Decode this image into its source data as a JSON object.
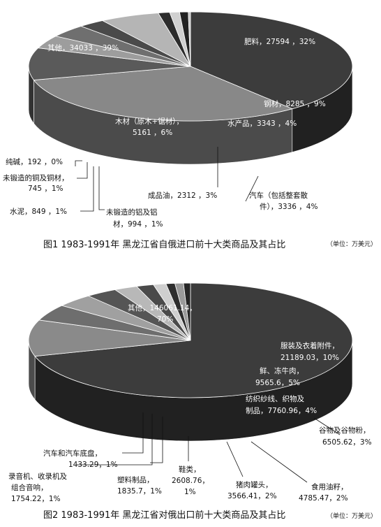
{
  "chart_data": [
    {
      "type": "pie",
      "title": "图1  1983-1991年 黑龙江省自俄进口前十大类商品及其占比",
      "unit": "（单位：万美元）",
      "slices": [
        {
          "label": "其他，34033 ，39%",
          "value": 34033,
          "percent": 39,
          "color": "#3c3c3c"
        },
        {
          "label": "肥料，27594 ，32%",
          "value": 27594,
          "percent": 32,
          "color": "#888888"
        },
        {
          "label": "钢材，8285 ，9%",
          "value": 8285,
          "percent": 9,
          "color": "#5a5a5a"
        },
        {
          "label": "水产品，3343 ，4%",
          "value": 3343,
          "percent": 4,
          "color": "#9d9d9d"
        },
        {
          "label": "汽车（包括整套散件），3336 ，4%",
          "value": 3336,
          "percent": 4,
          "color": "#6f6f6f"
        },
        {
          "label": "成品油，2312 ，3%",
          "value": 2312,
          "percent": 3,
          "color": "#4a4a4a"
        },
        {
          "label": "木材（原木+锯材），5161 ，6%",
          "value": 5161,
          "percent": 6,
          "color": "#b5b5b5"
        },
        {
          "label": "未锻造的铝及铝材，994 ，1%",
          "value": 994,
          "percent": 1,
          "color": "#2c2c2c"
        },
        {
          "label": "水泥，849 ，1%",
          "value": 849,
          "percent": 1,
          "color": "#d0d0d0"
        },
        {
          "label": "未锻造的铜及铜材，745 ，1%",
          "value": 745,
          "percent": 1,
          "color": "#222222"
        },
        {
          "label": "纯碱，192 ，0%",
          "value": 192,
          "percent": 0,
          "color": "#c6c6c6"
        }
      ]
    },
    {
      "type": "pie",
      "title": "图2  1983-1991年 黑龙江省对俄出口前十大类商品及其占比",
      "unit": "（单位：万美元）",
      "slices": [
        {
          "label": "其他，146061.14，70%",
          "value": 146061.14,
          "percent": 70,
          "color": "#3c3c3c"
        },
        {
          "label": "服装及衣着附件，21189.03，10%",
          "value": 21189.03,
          "percent": 10,
          "color": "#8a8a8a"
        },
        {
          "label": "鲜、冻牛肉，9565.6，5%",
          "value": 9565.6,
          "percent": 5,
          "color": "#6e6e6e"
        },
        {
          "label": "纺织纱线、织物及制品，7760.96，4%",
          "value": 7760.96,
          "percent": 4,
          "color": "#a0a0a0"
        },
        {
          "label": "谷物及谷物粉，6505.62，3%",
          "value": 6505.62,
          "percent": 3,
          "color": "#555555"
        },
        {
          "label": "食用油籽，4785.47，2%",
          "value": 4785.47,
          "percent": 2,
          "color": "#b8b8b8"
        },
        {
          "label": "猪肉罐头，3566.41，2%",
          "value": 3566.41,
          "percent": 2,
          "color": "#4a4a4a"
        },
        {
          "label": "鞋类，2608.76，1%",
          "value": 2608.76,
          "percent": 1,
          "color": "#cfcfcf"
        },
        {
          "label": "塑料制品，1835.7，1%",
          "value": 1835.7,
          "percent": 1,
          "color": "#2e2e2e"
        },
        {
          "label": "录音机、收录机及组合音响，1754.22，1%",
          "value": 1754.22,
          "percent": 1,
          "color": "#9a9a9a"
        },
        {
          "label": "汽车和汽车底盘，1433.29，1%",
          "value": 1433.29,
          "percent": 1,
          "color": "#262626"
        }
      ]
    }
  ],
  "labels1": {
    "other_a": "其他，34033 ，39%",
    "fert": "肥料，27594 ，32%",
    "steel": "钢材，8285 ，9%",
    "aquatic": "水产品，3343 ，4%",
    "car_a": "汽车（包括整套散",
    "car_b": "件），3336 ，4%",
    "oil": "成品油，2312 ，3%",
    "wood_a": "木材（原木+锯材），",
    "wood_b": "5161 ，6%",
    "alu_a": "未锻造的铝及铝",
    "alu_b": "材，994 ，1%",
    "cement": "水泥，849 ，1%",
    "copper_a": "未锻造的铜及铜材，",
    "copper_b": "745 ，1%",
    "soda": "纯碱，192 ，0%"
  },
  "labels2": {
    "other_a": "其他，146061.14，",
    "other_b": "70%",
    "clothing_a": "服装及衣着附件，",
    "clothing_b": "21189.03，10%",
    "beef_a": "鲜、冻牛肉，",
    "beef_b": "9565.6，5%",
    "textile_a": "纺织纱线、织物及",
    "textile_b": "制品，7760.96，4%",
    "grain_a": "谷物及谷物粉，",
    "grain_b": "6505.62，3%",
    "oilseed_a": "食用油籽，",
    "oilseed_b": "4785.47，2%",
    "pork_a": "猪肉罐头，",
    "pork_b": "3566.41，2%",
    "shoes_a": "鞋类，",
    "shoes_b": "2608.76，",
    "shoes_c": "1%",
    "plastic_a": "塑料制品，",
    "plastic_b": "1835.7，1%",
    "radio_a": "录音机、收录机及",
    "radio_b": "组合音响，",
    "radio_c": "1754.22，1%",
    "auto_a": "汽车和汽车底盘，",
    "auto_b": "1433.29，1%"
  },
  "captions": {
    "fig1": "图1  1983-1991年  黑龙江省自俄进口前十大类商品及其占比",
    "fig1_unit": "（单位：万美元）",
    "fig2": "图2  1983-1991年  黑龙江省对俄出口前十大类商品及其占比",
    "fig2_unit": "（单位：万美元）"
  }
}
